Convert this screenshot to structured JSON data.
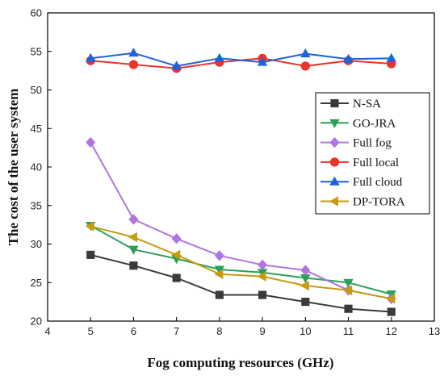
{
  "chart_data": {
    "type": "line",
    "title": "",
    "xlabel": "Fog computing resources (GHz)",
    "ylabel": "The cost of the user system",
    "xlim": [
      4,
      13
    ],
    "ylim": [
      20,
      60
    ],
    "xticks": [
      4,
      5,
      6,
      7,
      8,
      9,
      10,
      11,
      12,
      13
    ],
    "yticks": [
      20,
      25,
      30,
      35,
      40,
      45,
      50,
      55,
      60
    ],
    "grid": false,
    "legend_position": "right",
    "x": [
      5,
      6,
      7,
      8,
      9,
      10,
      11,
      12
    ],
    "series": [
      {
        "name": "N-SA",
        "marker": "square",
        "color": "#3a3a3a",
        "values": [
          28.6,
          27.2,
          25.6,
          23.4,
          23.4,
          22.5,
          21.6,
          21.2
        ]
      },
      {
        "name": "GO-JRA",
        "marker": "triangle-down",
        "color": "#2ca05a",
        "values": [
          32.4,
          29.3,
          28.1,
          26.7,
          26.3,
          25.6,
          25.0,
          23.5
        ]
      },
      {
        "name": "Full fog",
        "marker": "diamond",
        "color": "#b075e0",
        "values": [
          43.2,
          33.2,
          30.7,
          28.5,
          27.3,
          26.6,
          24.0,
          22.9
        ]
      },
      {
        "name": "Full local",
        "marker": "circle",
        "color": "#e8342b",
        "values": [
          53.8,
          53.3,
          52.8,
          53.6,
          54.1,
          53.1,
          53.8,
          53.4
        ]
      },
      {
        "name": "Full cloud",
        "marker": "triangle-up",
        "color": "#1f63d8",
        "values": [
          54.1,
          54.8,
          53.1,
          54.1,
          53.6,
          54.7,
          54.0,
          54.1
        ]
      },
      {
        "name": "DP-TORA",
        "marker": "triangle-left",
        "color": "#c89a10",
        "values": [
          32.3,
          30.9,
          28.6,
          26.1,
          25.8,
          24.6,
          24.0,
          22.9
        ]
      }
    ]
  }
}
